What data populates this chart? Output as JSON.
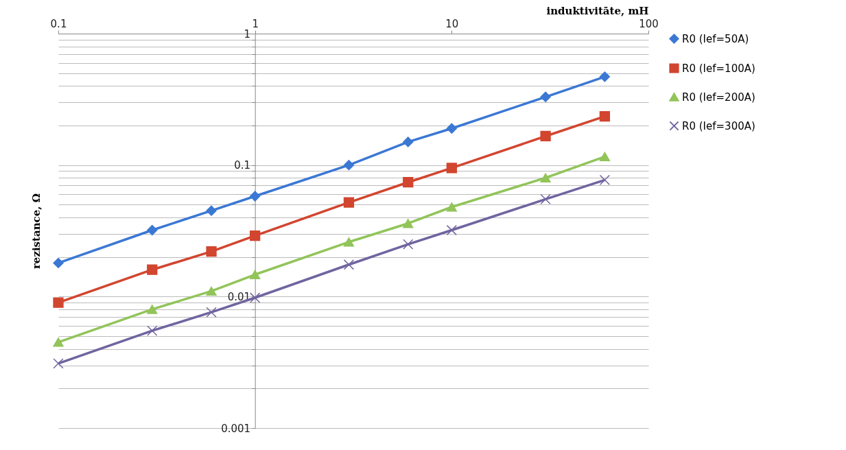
{
  "chart_data": {
    "type": "line",
    "xlabel": "induktivitāte, mH",
    "ylabel": "rezistance, Ω",
    "log": "xy",
    "grid": "y",
    "legend": "right",
    "line_style": "solid",
    "x": [
      0.1,
      0.3,
      0.6,
      1,
      3,
      6,
      10,
      30,
      60
    ],
    "xlim": [
      0.1,
      100
    ],
    "xticks": [
      0.1,
      1,
      10,
      100
    ],
    "ylim": [
      0.001,
      1
    ],
    "yticks": [
      0.001,
      {
        "value": 0.002,
        "label": null
      },
      {
        "value": 0.003,
        "label": null
      },
      {
        "value": 0.004,
        "label": null
      },
      {
        "value": 0.005,
        "label": null
      },
      {
        "value": 0.006,
        "label": null
      },
      {
        "value": 0.007,
        "label": null
      },
      {
        "value": 0.008,
        "label": null
      },
      {
        "value": 0.009,
        "label": null
      },
      0.01,
      {
        "value": 0.02,
        "label": null
      },
      {
        "value": 0.03,
        "label": null
      },
      {
        "value": 0.04,
        "label": null
      },
      {
        "value": 0.05,
        "label": null
      },
      {
        "value": 0.06,
        "label": null
      },
      {
        "value": 0.07,
        "label": null
      },
      {
        "value": 0.08,
        "label": null
      },
      {
        "value": 0.09,
        "label": null
      },
      0.1,
      {
        "value": 0.2,
        "label": null
      },
      {
        "value": 0.3,
        "label": null
      },
      {
        "value": 0.4,
        "label": null
      },
      {
        "value": 0.5,
        "label": null
      },
      {
        "value": 0.6,
        "label": null
      },
      {
        "value": 0.7,
        "label": null
      },
      {
        "value": 0.8,
        "label": null
      },
      {
        "value": 0.9,
        "label": null
      },
      1
    ],
    "series": [
      {
        "name": "R0 (Ief=50A)",
        "color": "#3b78d4",
        "marker": "diamond",
        "values": [
          0.018,
          0.032,
          0.045,
          0.058,
          0.1,
          0.15,
          0.19,
          0.33,
          0.47
        ]
      },
      {
        "name": "R0 (Ief=100A)",
        "color": "#d2452f",
        "marker": "square",
        "values": [
          0.009,
          0.016,
          0.022,
          0.029,
          0.052,
          0.074,
          0.095,
          0.166,
          0.235
        ]
      },
      {
        "name": "R0 (Ief=200A)",
        "color": "#92c45a",
        "marker": "triangle",
        "values": [
          0.0045,
          0.008,
          0.011,
          0.0147,
          0.026,
          0.036,
          0.048,
          0.08,
          0.116
        ]
      },
      {
        "name": "R0 (Ief=300A)",
        "color": "#7064a0",
        "marker": "cross",
        "values": [
          0.0031,
          0.0055,
          0.0076,
          0.0098,
          0.0175,
          0.025,
          0.032,
          0.055,
          0.077
        ]
      }
    ]
  }
}
